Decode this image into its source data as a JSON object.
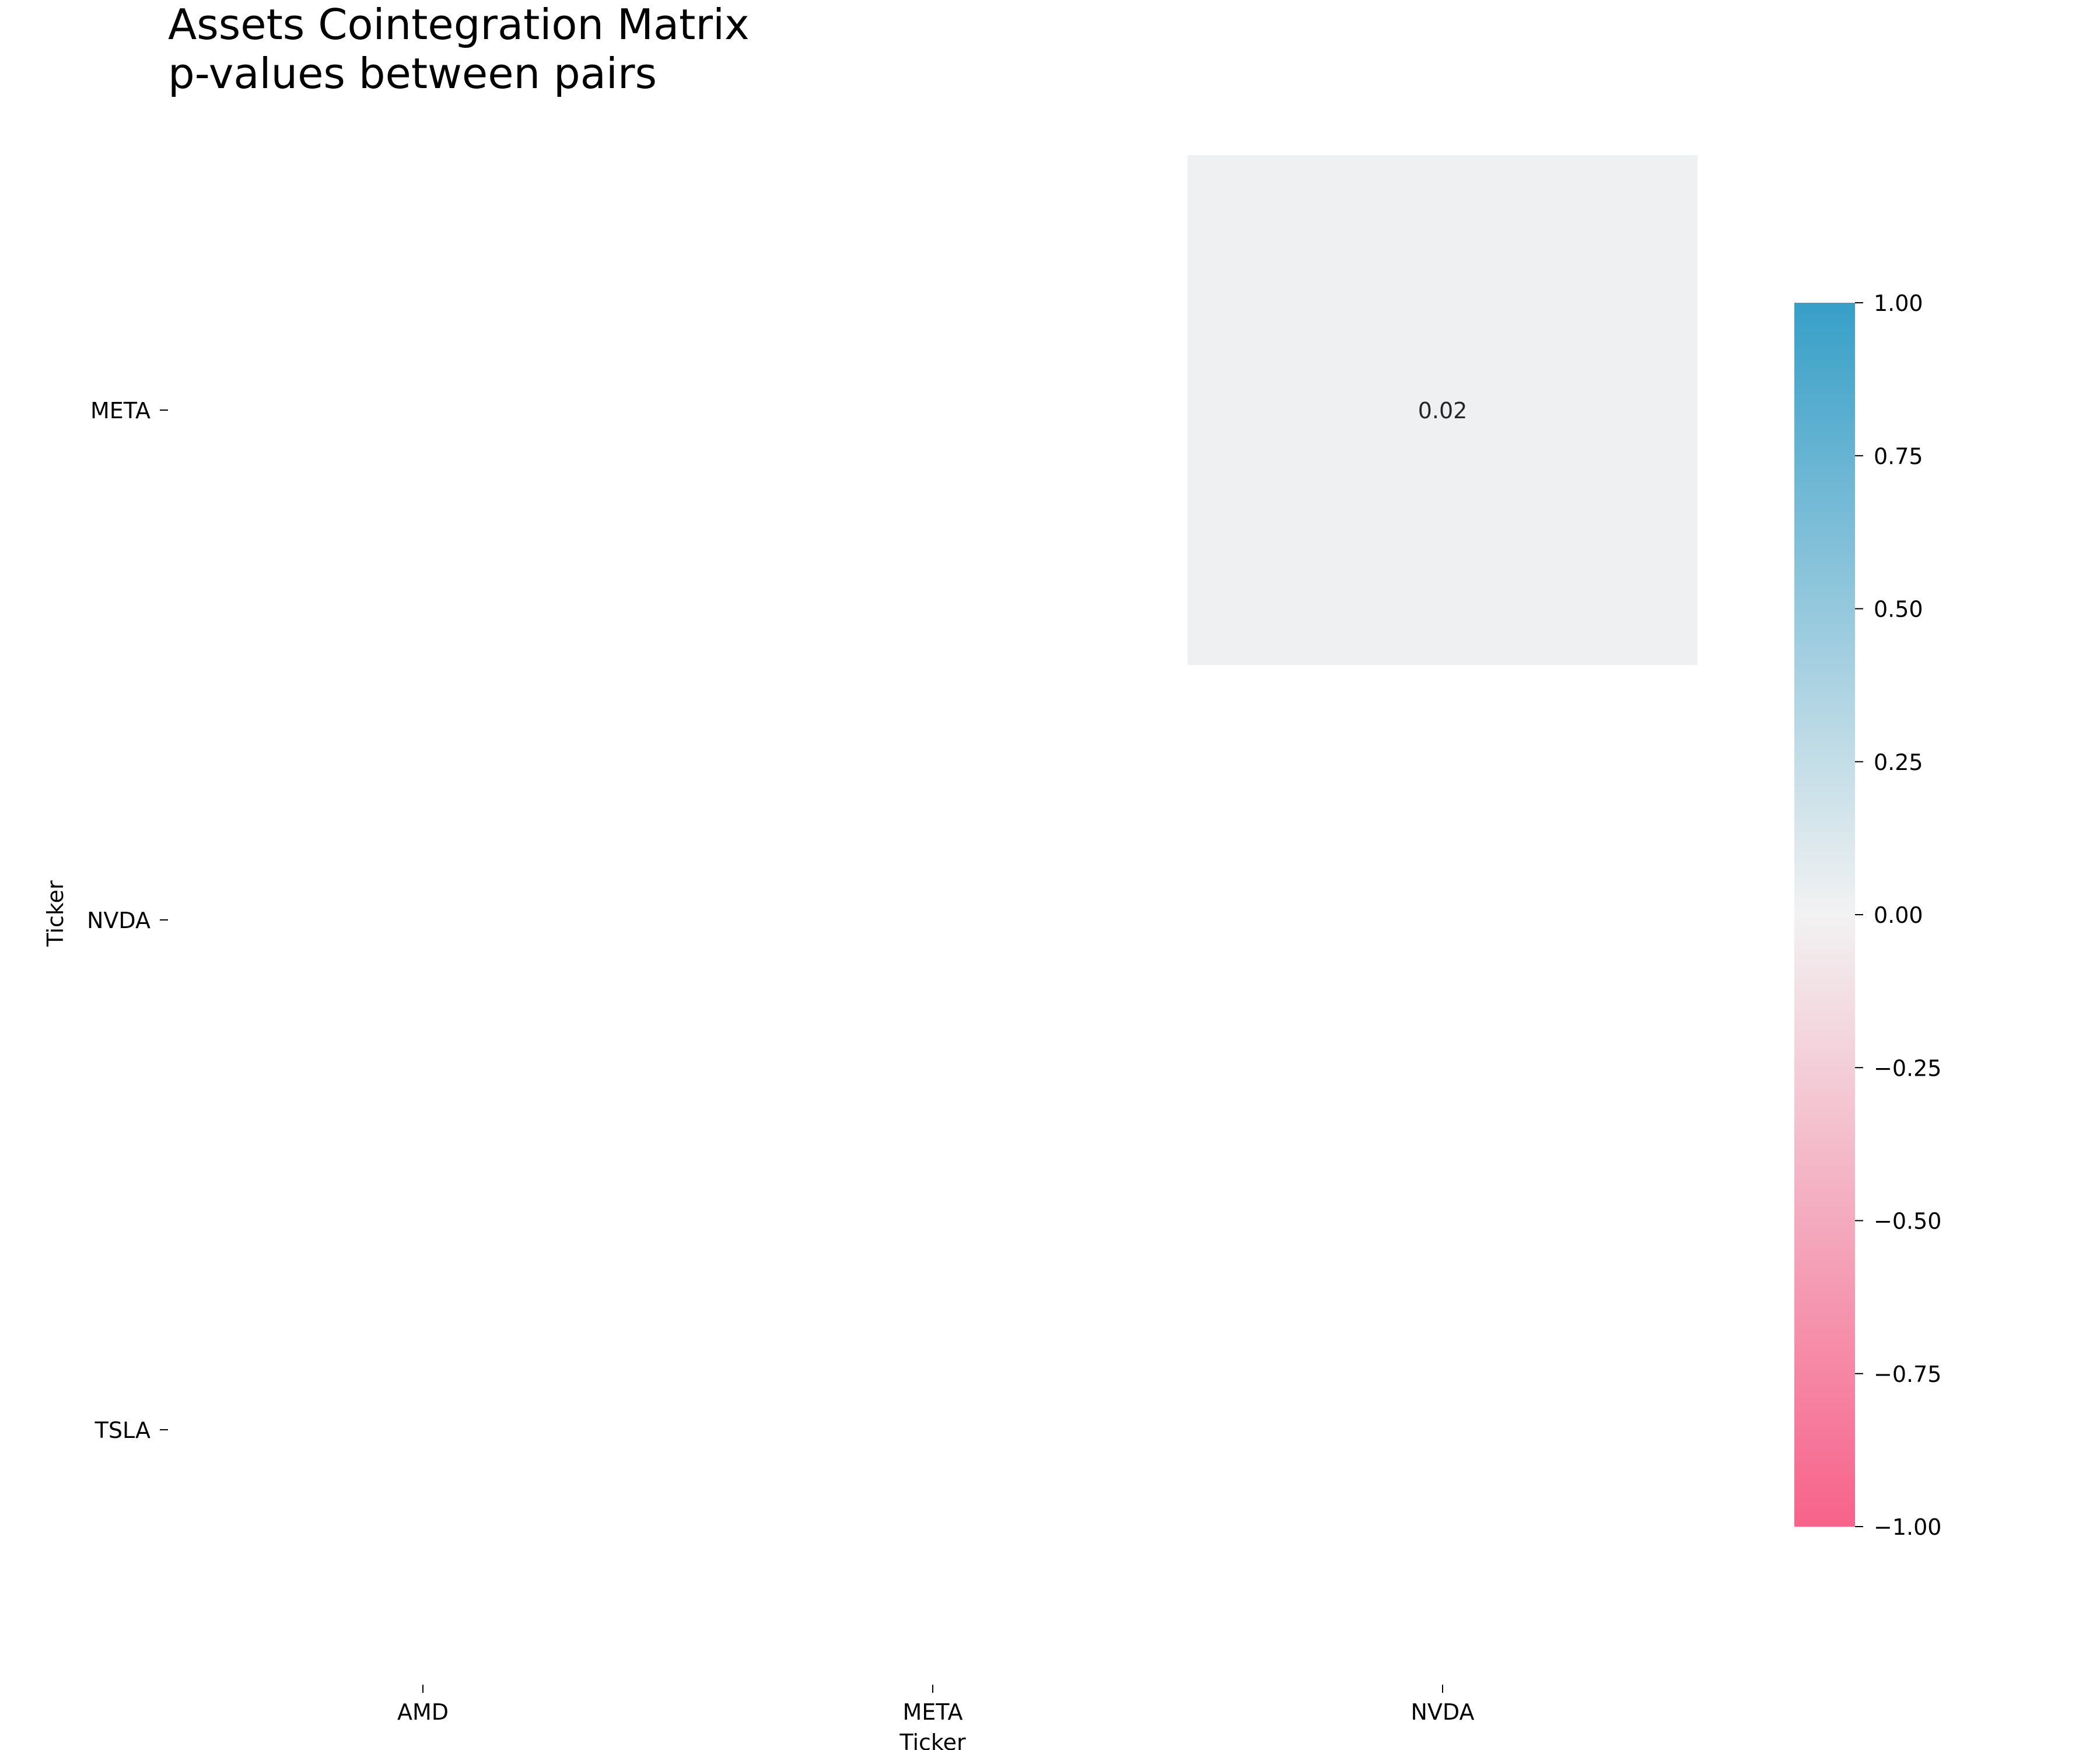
{
  "chart_data": {
    "type": "heatmap",
    "title": "Assets Cointegration Matrix",
    "subtitle": "p-values between pairs",
    "xlabel": "Ticker",
    "ylabel": "Ticker",
    "x_categories": [
      "AMD",
      "META",
      "NVDA"
    ],
    "y_categories": [
      "META",
      "NVDA",
      "TSLA"
    ],
    "cells": [
      {
        "x": "NVDA",
        "y": "META",
        "value": 0.02,
        "label": "0.02"
      }
    ],
    "colorbar": {
      "min": -1.0,
      "max": 1.0,
      "ticks": [
        1.0,
        0.75,
        0.5,
        0.25,
        0.0,
        -0.25,
        -0.5,
        -0.75,
        -1.0
      ],
      "tick_labels": [
        "1.00",
        "0.75",
        "0.50",
        "0.25",
        "0.00",
        "−0.25",
        "−0.50",
        "−0.75",
        "−1.00"
      ],
      "color_low": "#f7628a",
      "color_mid": "#f2f2f2",
      "color_high": "#379fc8"
    },
    "grid": false
  }
}
